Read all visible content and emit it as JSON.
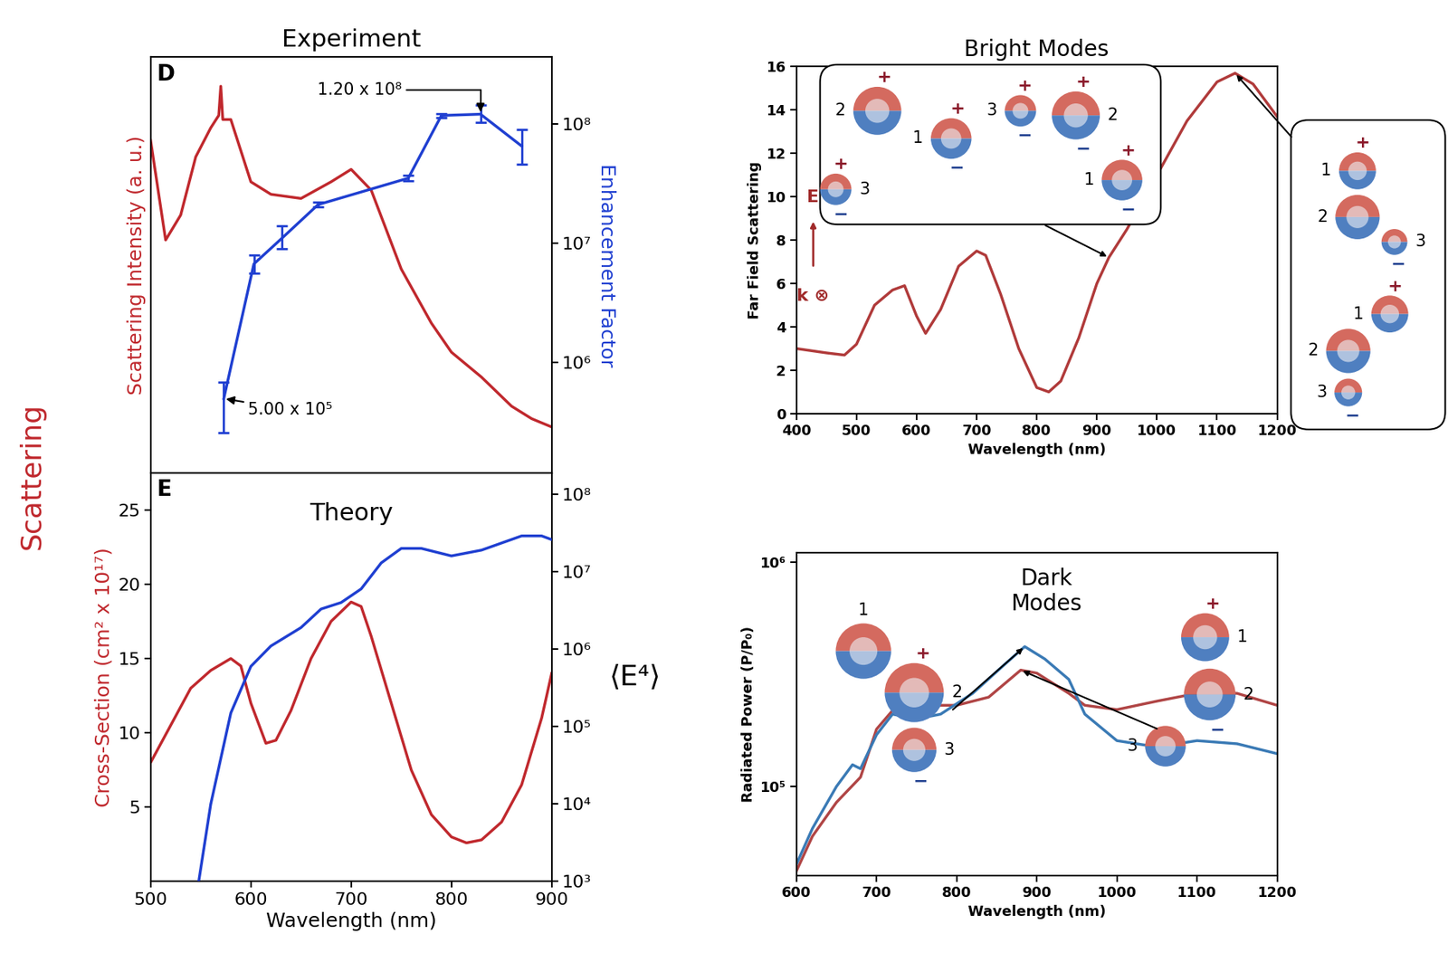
{
  "figure_text": "Scattering",
  "sphere_labels": [
    "1",
    "2",
    "3"
  ],
  "charge_labels": [
    "+",
    "−"
  ],
  "chart_data": [
    {
      "type": "line",
      "title": "Experiment",
      "panel": "D",
      "xlim": [
        500,
        900
      ],
      "xticks": [
        600,
        700,
        800
      ],
      "tick_labels": "y",
      "ylabel": "Scattering Intensity (a. u.)",
      "ylim": [
        0,
        1
      ],
      "yticks": [],
      "y2label": "Enhancement Factor",
      "log": "y2",
      "y2lim": [
        120000,
        360000000
      ],
      "y2ticks": [
        {
          "value": 1000000,
          "label": "10⁶"
        },
        {
          "value": 10000000,
          "label": "10⁷"
        },
        {
          "value": 100000000,
          "label": "10⁸"
        }
      ],
      "series": [
        {
          "color": "#c0282d",
          "x": [
            500,
            515,
            530,
            545,
            560,
            568,
            570,
            572,
            580,
            600,
            620,
            650,
            680,
            700,
            720,
            750,
            780,
            800,
            830,
            860,
            880,
            900
          ],
          "values": [
            0.8,
            0.56,
            0.62,
            0.76,
            0.83,
            0.86,
            0.93,
            0.85,
            0.85,
            0.7,
            0.67,
            0.66,
            0.7,
            0.73,
            0.68,
            0.49,
            0.36,
            0.29,
            0.23,
            0.16,
            0.13,
            0.11
          ]
        },
        {
          "color": "#1f3fd1",
          "axis": "y2",
          "x": [
            573,
            603,
            631,
            667,
            757,
            790,
            829,
            870
          ],
          "values": [
            500000,
            6700000,
            11000000,
            21000000,
            35000000,
            117000000,
            120000000,
            65000000
          ],
          "error_low": [
            240000,
            1100000,
            2000000,
            1000000,
            2000000,
            5000000,
            18000000,
            19000000
          ],
          "error_high": [
            190000,
            1200000,
            3000000,
            1000000,
            2000000,
            5000000,
            23000000,
            25000000
          ]
        }
      ],
      "annotations": [
        {
          "text": "1.20 x 10⁸",
          "x": 829,
          "y": 120000000,
          "axis": "y2"
        },
        {
          "text": "5.00 x 10⁵",
          "x": 573,
          "y": 500000,
          "axis": "y2"
        }
      ]
    },
    {
      "type": "line",
      "title": "Theory",
      "panel": "E",
      "xlabel": "Wavelength (nm)",
      "xlim": [
        500,
        900
      ],
      "xticks": [
        500,
        600,
        700,
        800,
        900
      ],
      "ylabel": "Cross-Section (cm² x 10¹⁷)",
      "ylim": [
        0,
        27.5
      ],
      "yticks": [
        5,
        10,
        15,
        20,
        25
      ],
      "y2label": "⟨E⁴⟩",
      "log": "y2",
      "y2lim": [
        1000,
        190000000
      ],
      "y2ticks": [
        {
          "value": 1000,
          "label": "10³"
        },
        {
          "value": 10000,
          "label": "10⁴"
        },
        {
          "value": 100000,
          "label": "10⁵"
        },
        {
          "value": 1000000,
          "label": "10⁶"
        },
        {
          "value": 10000000,
          "label": "10⁷"
        },
        {
          "value": 100000000,
          "label": "10⁸"
        }
      ],
      "series": [
        {
          "color": "#c0282d",
          "x": [
            500,
            520,
            540,
            560,
            580,
            590,
            600,
            615,
            625,
            640,
            660,
            680,
            700,
            710,
            720,
            740,
            760,
            780,
            800,
            815,
            830,
            850,
            870,
            890,
            900
          ],
          "values": [
            8,
            10.5,
            13,
            14.2,
            15,
            14.5,
            12,
            9.3,
            9.5,
            11.5,
            15,
            17.5,
            18.8,
            18.5,
            16.5,
            12,
            7.5,
            4.5,
            3,
            2.6,
            2.8,
            4,
            6.5,
            11,
            14
          ]
        },
        {
          "color": "#1f3fd1",
          "axis": "y2",
          "x": [
            548,
            560,
            580,
            600,
            620,
            650,
            670,
            690,
            710,
            730,
            750,
            770,
            800,
            830,
            870,
            890,
            900
          ],
          "values": [
            1000,
            10000,
            150000,
            600000,
            1100000,
            1900000,
            3300000,
            4000000,
            6000000,
            13000000,
            20000000,
            20000000,
            16000000,
            19000000,
            29000000,
            29000000,
            26000000
          ]
        }
      ]
    },
    {
      "type": "line",
      "title": "Bright Modes",
      "xlabel": "Wavelength (nm)",
      "xlim": [
        400,
        1200
      ],
      "xticks": [
        400,
        500,
        600,
        700,
        800,
        900,
        1000,
        1100,
        1200
      ],
      "ylabel": "Far Field Scattering",
      "ylim": [
        0,
        16
      ],
      "yticks": [
        0,
        2,
        4,
        6,
        8,
        10,
        12,
        14,
        16
      ],
      "field_labels": [
        "E",
        "k ⊗"
      ],
      "series": [
        {
          "color": "#b03a3a",
          "x": [
            400,
            450,
            480,
            500,
            530,
            560,
            580,
            600,
            615,
            640,
            670,
            700,
            715,
            740,
            770,
            800,
            820,
            840,
            870,
            900,
            920,
            950,
            1000,
            1050,
            1100,
            1130,
            1160,
            1200
          ],
          "values": [
            3,
            2.8,
            2.7,
            3.2,
            5,
            5.7,
            5.9,
            4.5,
            3.7,
            4.8,
            6.8,
            7.5,
            7.3,
            5.5,
            3,
            1.2,
            1,
            1.5,
            3.5,
            6,
            7.2,
            8.5,
            11,
            13.5,
            15.3,
            15.7,
            15.2,
            13.7
          ]
        }
      ]
    },
    {
      "type": "line",
      "title": "Dark Modes",
      "log": "y",
      "xlabel": "Wavelength (nm)",
      "xlim": [
        600,
        1200
      ],
      "xticks": [
        600,
        700,
        800,
        900,
        1000,
        1100,
        1200
      ],
      "ylabel": "Radiated Power (P/P₀)",
      "ylim": [
        40000,
        1100000
      ],
      "yticks": [
        {
          "value": 100000,
          "label": "10⁵"
        },
        {
          "value": 1000000,
          "label": "10⁶"
        }
      ],
      "series": [
        {
          "color": "#b04545",
          "x": [
            600,
            620,
            650,
            680,
            700,
            730,
            760,
            800,
            840,
            880,
            900,
            940,
            960,
            1000,
            1050,
            1100,
            1150,
            1200
          ],
          "values": [
            42000,
            60000,
            85000,
            110000,
            180000,
            240000,
            230000,
            230000,
            250000,
            330000,
            320000,
            260000,
            230000,
            220000,
            240000,
            260000,
            260000,
            230000
          ]
        },
        {
          "color": "#3a7ab5",
          "x": [
            600,
            620,
            650,
            670,
            680,
            700,
            720,
            750,
            780,
            820,
            860,
            885,
            910,
            940,
            960,
            1000,
            1050,
            1100,
            1150,
            1200
          ],
          "values": [
            45000,
            65000,
            100000,
            125000,
            120000,
            170000,
            210000,
            200000,
            210000,
            260000,
            350000,
            420000,
            370000,
            300000,
            210000,
            160000,
            150000,
            160000,
            155000,
            140000
          ]
        }
      ]
    }
  ]
}
